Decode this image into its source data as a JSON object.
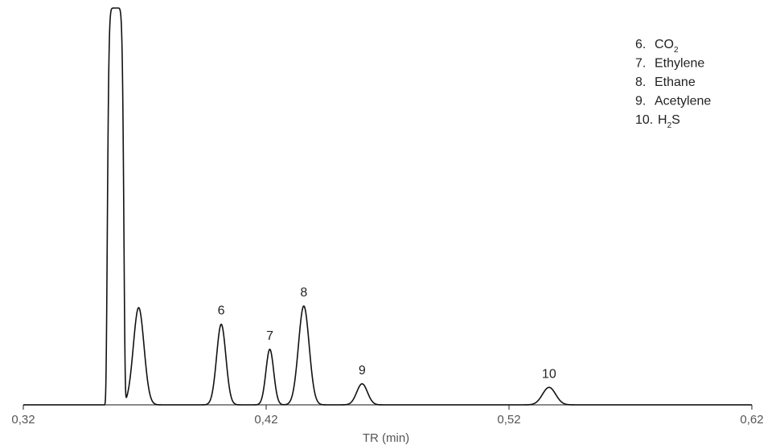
{
  "chart_data": {
    "type": "line",
    "title": "",
    "xlabel": "TR (min)",
    "ylabel": "",
    "xlim": [
      0.32,
      0.62
    ],
    "ylim": [
      0,
      100
    ],
    "x_ticks": [
      {
        "value": 0.32,
        "label": "0,32"
      },
      {
        "value": 0.42,
        "label": "0,42"
      },
      {
        "value": 0.52,
        "label": "0,52"
      },
      {
        "value": 0.62,
        "label": "0,62"
      }
    ],
    "grid": false,
    "line_color": "#111111",
    "axis_color": "#444444",
    "baseline": 0,
    "peaks": [
      {
        "label": "",
        "rt": 0.358,
        "height": 100,
        "width": 0.0035,
        "flat_top": true
      },
      {
        "label": "",
        "rt": 0.3675,
        "height": 24.5,
        "width": 0.0022
      },
      {
        "label": "6",
        "rt": 0.4015,
        "height": 20.3,
        "width": 0.0019
      },
      {
        "label": "7",
        "rt": 0.4215,
        "height": 14.0,
        "width": 0.0016
      },
      {
        "label": "8",
        "rt": 0.4355,
        "height": 24.9,
        "width": 0.0022
      },
      {
        "label": "9",
        "rt": 0.4595,
        "height": 5.3,
        "width": 0.0022
      },
      {
        "label": "10",
        "rt": 0.5365,
        "height": 4.4,
        "width": 0.0027
      }
    ],
    "legend_position": "top-right",
    "legend": [
      {
        "number": "6.",
        "name": "CO",
        "sub": "2",
        "suffix": ""
      },
      {
        "number": "7.",
        "name": "Ethylene",
        "sub": "",
        "suffix": ""
      },
      {
        "number": "8.",
        "name": "Ethane",
        "sub": "",
        "suffix": ""
      },
      {
        "number": "9.",
        "name": "Acetylene",
        "sub": "",
        "suffix": ""
      },
      {
        "number": "10.",
        "name": "H",
        "sub": "2",
        "suffix": "S"
      }
    ]
  }
}
